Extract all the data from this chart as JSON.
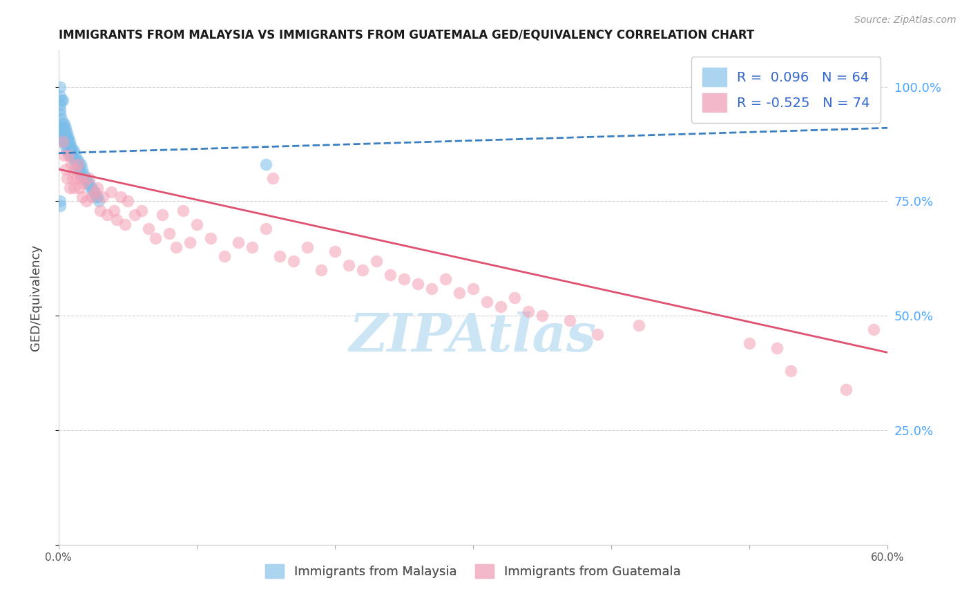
{
  "title": "IMMIGRANTS FROM MALAYSIA VS IMMIGRANTS FROM GUATEMALA GED/EQUIVALENCY CORRELATION CHART",
  "source": "Source: ZipAtlas.com",
  "ylabel": "GED/Equivalency",
  "ytick_labels": [
    "100.0%",
    "75.0%",
    "50.0%",
    "25.0%"
  ],
  "ytick_values": [
    1.0,
    0.75,
    0.5,
    0.25
  ],
  "xmin": 0.0,
  "xmax": 0.6,
  "ymin": 0.0,
  "ymax": 1.08,
  "malaysia_R": 0.096,
  "malaysia_N": 64,
  "guatemala_R": -0.525,
  "guatemala_N": 74,
  "malaysia_color": "#7abde8",
  "guatemala_color": "#f4a0b5",
  "malaysia_line_color": "#3a7fc1",
  "guatemala_line_color": "#e05070",
  "watermark_color": "#cce5f5",
  "malaysia_scatter_x": [
    0.001,
    0.001,
    0.001,
    0.001,
    0.001,
    0.002,
    0.002,
    0.002,
    0.002,
    0.002,
    0.003,
    0.003,
    0.003,
    0.003,
    0.004,
    0.004,
    0.004,
    0.004,
    0.005,
    0.005,
    0.005,
    0.005,
    0.006,
    0.006,
    0.006,
    0.006,
    0.007,
    0.007,
    0.007,
    0.008,
    0.008,
    0.008,
    0.009,
    0.009,
    0.01,
    0.01,
    0.011,
    0.011,
    0.012,
    0.012,
    0.013,
    0.013,
    0.014,
    0.014,
    0.015,
    0.015,
    0.016,
    0.016,
    0.017,
    0.018,
    0.019,
    0.02,
    0.021,
    0.022,
    0.023,
    0.024,
    0.025,
    0.026,
    0.027,
    0.028,
    0.029,
    0.15,
    0.001,
    0.001
  ],
  "malaysia_scatter_y": [
    0.98,
    0.96,
    0.95,
    0.94,
    1.0,
    0.97,
    0.93,
    0.91,
    0.9,
    0.89,
    0.97,
    0.92,
    0.9,
    0.88,
    0.92,
    0.91,
    0.89,
    0.88,
    0.91,
    0.9,
    0.89,
    0.87,
    0.9,
    0.89,
    0.88,
    0.86,
    0.89,
    0.88,
    0.87,
    0.88,
    0.87,
    0.85,
    0.87,
    0.86,
    0.86,
    0.85,
    0.86,
    0.84,
    0.85,
    0.84,
    0.84,
    0.83,
    0.84,
    0.82,
    0.83,
    0.82,
    0.83,
    0.81,
    0.82,
    0.81,
    0.8,
    0.8,
    0.79,
    0.79,
    0.78,
    0.78,
    0.77,
    0.77,
    0.76,
    0.76,
    0.75,
    0.83,
    0.75,
    0.74
  ],
  "guatemala_scatter_x": [
    0.003,
    0.004,
    0.005,
    0.006,
    0.007,
    0.008,
    0.009,
    0.01,
    0.011,
    0.012,
    0.013,
    0.014,
    0.015,
    0.016,
    0.017,
    0.018,
    0.02,
    0.022,
    0.024,
    0.026,
    0.028,
    0.03,
    0.032,
    0.035,
    0.038,
    0.04,
    0.042,
    0.045,
    0.048,
    0.05,
    0.055,
    0.06,
    0.065,
    0.07,
    0.075,
    0.08,
    0.085,
    0.09,
    0.095,
    0.1,
    0.11,
    0.12,
    0.13,
    0.14,
    0.15,
    0.155,
    0.16,
    0.17,
    0.18,
    0.19,
    0.2,
    0.21,
    0.22,
    0.23,
    0.24,
    0.25,
    0.26,
    0.27,
    0.28,
    0.29,
    0.3,
    0.31,
    0.32,
    0.33,
    0.34,
    0.35,
    0.37,
    0.39,
    0.5,
    0.52,
    0.42,
    0.53,
    0.57,
    0.59
  ],
  "guatemala_scatter_y": [
    0.88,
    0.85,
    0.82,
    0.8,
    0.85,
    0.78,
    0.83,
    0.8,
    0.78,
    0.82,
    0.8,
    0.83,
    0.78,
    0.8,
    0.76,
    0.79,
    0.75,
    0.8,
    0.76,
    0.77,
    0.78,
    0.73,
    0.76,
    0.72,
    0.77,
    0.73,
    0.71,
    0.76,
    0.7,
    0.75,
    0.72,
    0.73,
    0.69,
    0.67,
    0.72,
    0.68,
    0.65,
    0.73,
    0.66,
    0.7,
    0.67,
    0.63,
    0.66,
    0.65,
    0.69,
    0.8,
    0.63,
    0.62,
    0.65,
    0.6,
    0.64,
    0.61,
    0.6,
    0.62,
    0.59,
    0.58,
    0.57,
    0.56,
    0.58,
    0.55,
    0.56,
    0.53,
    0.52,
    0.54,
    0.51,
    0.5,
    0.49,
    0.46,
    0.44,
    0.43,
    0.48,
    0.38,
    0.34,
    0.47
  ],
  "malaysia_line_x0": 0.0,
  "malaysia_line_x1": 0.6,
  "malaysia_line_y0": 0.855,
  "malaysia_line_y1": 0.91,
  "guatemala_line_x0": 0.0,
  "guatemala_line_x1": 0.6,
  "guatemala_line_y0": 0.82,
  "guatemala_line_y1": 0.42
}
